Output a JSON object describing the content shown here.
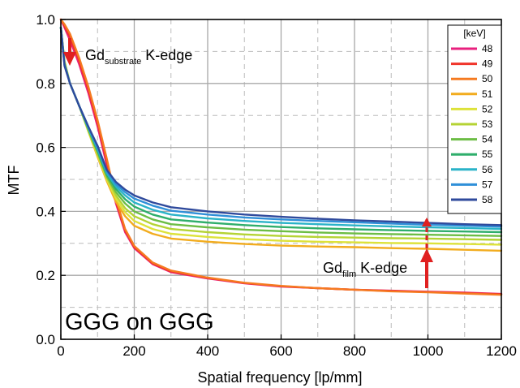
{
  "chart_data": {
    "type": "line",
    "title": "",
    "xlabel": "Spatial frequency [lp/mm]",
    "ylabel": "MTF",
    "xlim": [
      0,
      1200
    ],
    "ylim": [
      0.0,
      1.0
    ],
    "xticks": [
      "0",
      "200",
      "400",
      "600",
      "800",
      "1000",
      "1200"
    ],
    "yticks": [
      "0.0",
      "0.2",
      "0.4",
      "0.6",
      "0.8",
      "1.0"
    ],
    "grid": true,
    "legend_title": "[keV]",
    "legend_position": "right",
    "x": [
      0,
      10,
      25,
      50,
      75,
      100,
      125,
      150,
      175,
      200,
      250,
      300,
      400,
      500,
      600,
      700,
      800,
      900,
      1000,
      1100,
      1200
    ],
    "series": [
      {
        "name": "48",
        "color": "#e8207e",
        "values": [
          1.0,
          0.975,
          0.935,
          0.86,
          0.77,
          0.665,
          0.545,
          0.425,
          0.335,
          0.285,
          0.235,
          0.21,
          0.19,
          0.175,
          0.165,
          0.16,
          0.155,
          0.152,
          0.149,
          0.146,
          0.142
        ]
      },
      {
        "name": "49",
        "color": "#f0352b",
        "values": [
          1.0,
          0.98,
          0.945,
          0.87,
          0.78,
          0.675,
          0.555,
          0.432,
          0.34,
          0.288,
          0.237,
          0.212,
          0.192,
          0.176,
          0.166,
          0.16,
          0.155,
          0.151,
          0.148,
          0.145,
          0.141
        ]
      },
      {
        "name": "50",
        "color": "#f57a20",
        "values": [
          1.0,
          0.985,
          0.955,
          0.88,
          0.79,
          0.685,
          0.565,
          0.44,
          0.345,
          0.292,
          0.24,
          0.215,
          0.193,
          0.177,
          0.167,
          0.16,
          0.155,
          0.15,
          0.147,
          0.143,
          0.139
        ]
      },
      {
        "name": "51",
        "color": "#f2ac1e",
        "values": [
          0.975,
          0.87,
          0.8,
          0.73,
          0.65,
          0.57,
          0.495,
          0.43,
          0.385,
          0.355,
          0.33,
          0.315,
          0.305,
          0.298,
          0.293,
          0.29,
          0.288,
          0.285,
          0.283,
          0.28,
          0.277
        ]
      },
      {
        "name": "52",
        "color": "#dde23a",
        "values": [
          0.975,
          0.868,
          0.8,
          0.73,
          0.65,
          0.575,
          0.5,
          0.44,
          0.398,
          0.37,
          0.345,
          0.33,
          0.32,
          0.313,
          0.308,
          0.305,
          0.303,
          0.301,
          0.3,
          0.298,
          0.296
        ]
      },
      {
        "name": "53",
        "color": "#b5d334",
        "values": [
          0.975,
          0.866,
          0.8,
          0.73,
          0.655,
          0.58,
          0.505,
          0.45,
          0.41,
          0.385,
          0.36,
          0.345,
          0.335,
          0.328,
          0.323,
          0.32,
          0.318,
          0.316,
          0.315,
          0.313,
          0.311
        ]
      },
      {
        "name": "54",
        "color": "#6cbd45",
        "values": [
          0.975,
          0.864,
          0.8,
          0.73,
          0.655,
          0.585,
          0.51,
          0.46,
          0.425,
          0.4,
          0.375,
          0.36,
          0.35,
          0.343,
          0.338,
          0.334,
          0.331,
          0.329,
          0.327,
          0.325,
          0.323
        ]
      },
      {
        "name": "55",
        "color": "#2fae6b",
        "values": [
          0.975,
          0.862,
          0.8,
          0.73,
          0.66,
          0.59,
          0.515,
          0.47,
          0.438,
          0.415,
          0.39,
          0.375,
          0.365,
          0.357,
          0.351,
          0.347,
          0.344,
          0.341,
          0.339,
          0.337,
          0.335
        ]
      },
      {
        "name": "56",
        "color": "#2ab3c8",
        "values": [
          0.975,
          0.86,
          0.8,
          0.73,
          0.66,
          0.595,
          0.52,
          0.478,
          0.45,
          0.428,
          0.405,
          0.39,
          0.378,
          0.37,
          0.364,
          0.36,
          0.356,
          0.353,
          0.35,
          0.348,
          0.345
        ]
      },
      {
        "name": "57",
        "color": "#2f8fd8",
        "values": [
          0.975,
          0.858,
          0.8,
          0.73,
          0.665,
          0.6,
          0.525,
          0.485,
          0.46,
          0.44,
          0.418,
          0.402,
          0.39,
          0.381,
          0.375,
          0.37,
          0.366,
          0.362,
          0.358,
          0.355,
          0.352
        ]
      },
      {
        "name": "58",
        "color": "#2f4a9c",
        "values": [
          0.975,
          0.855,
          0.8,
          0.73,
          0.665,
          0.605,
          0.53,
          0.492,
          0.468,
          0.45,
          0.428,
          0.413,
          0.4,
          0.39,
          0.383,
          0.377,
          0.372,
          0.368,
          0.364,
          0.36,
          0.357
        ]
      }
    ],
    "annotations": {
      "substrate_prefix": "Gd",
      "substrate_sub": "substrate",
      "substrate_suffix": " K-edge",
      "film_prefix": "Gd",
      "film_sub": "film",
      "film_suffix": " K-edge",
      "sample_label": "GGG on GGG"
    }
  }
}
